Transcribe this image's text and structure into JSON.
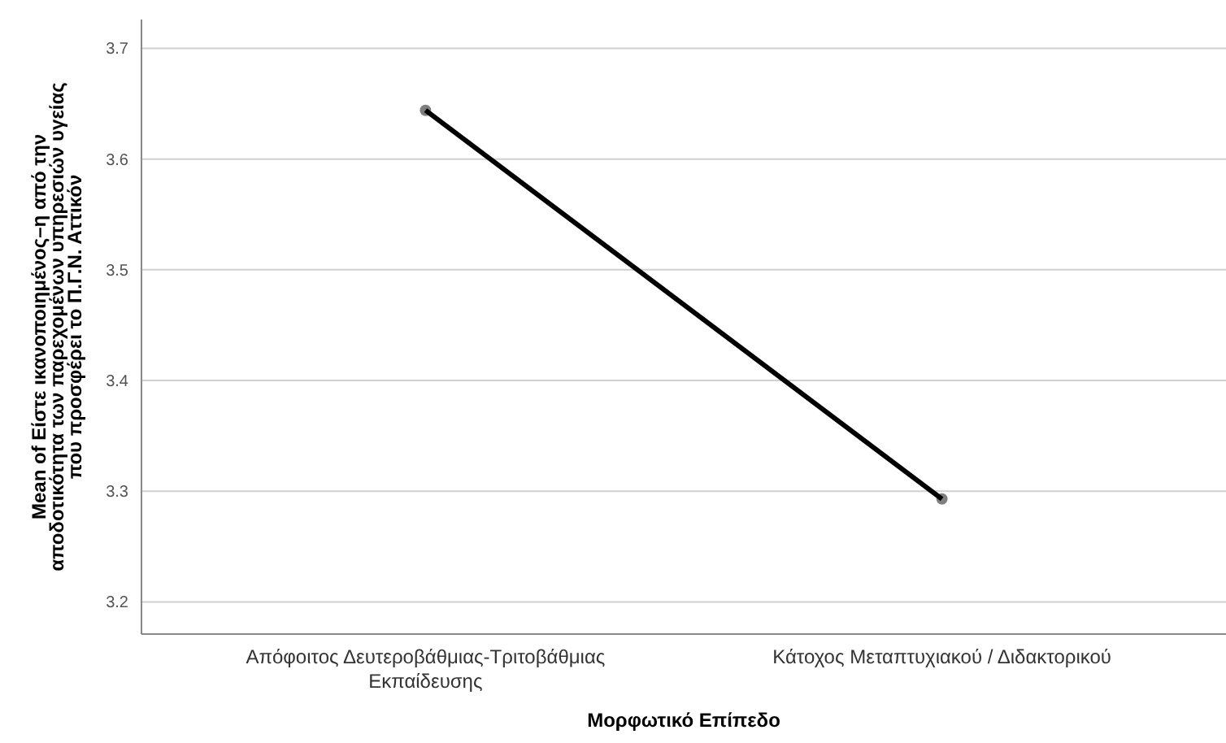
{
  "chart_data": {
    "type": "line",
    "xlabel": "Μορφωτικό Επίπεδο",
    "ylabel": "Mean of Είστε ικανοποιημένος–η από την αποδοτικότητα των παρεχομένων υπηρεσιών υγείας που προσφέρει το Π.Γ.Ν. Αττικόν",
    "categories": [
      "Απόφοιτος Δευτεροβάθμιας-Τριτοβάθμιας Εκπαίδευσης",
      "Κάτοχος Μεταπτυχιακού / Διδακτορικού"
    ],
    "series": [
      {
        "color": "#000000",
        "values": [
          3.644,
          3.293
        ]
      }
    ],
    "ylim": [
      3.171,
      3.726
    ],
    "yticks": [
      3.2,
      3.3,
      3.4,
      3.5,
      3.6,
      3.7
    ],
    "grid": "y",
    "marker": "circle",
    "line_style": "solid"
  }
}
